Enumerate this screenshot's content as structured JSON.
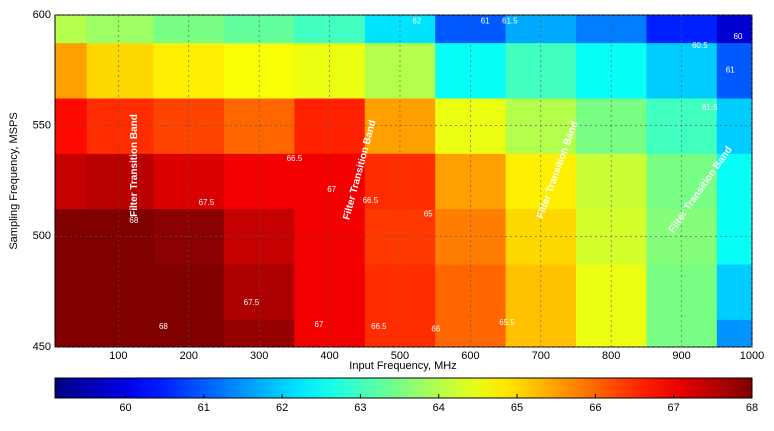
{
  "chart_data": {
    "type": "contour",
    "x": [
      10,
      100,
      200,
      300,
      400,
      500,
      600,
      700,
      800,
      900,
      1000
    ],
    "y": [
      450,
      475,
      500,
      525,
      550,
      575,
      600
    ],
    "z": [
      [
        68.3,
        68.3,
        68.2,
        67.8,
        67,
        66.5,
        66,
        65.2,
        64.5,
        63.5,
        61.5
      ],
      [
        68.2,
        68.2,
        68.1,
        67.6,
        67,
        66.5,
        66,
        65.2,
        64.5,
        63.5,
        62
      ],
      [
        68,
        68,
        67.9,
        67.4,
        67,
        66.4,
        65.8,
        65,
        64.3,
        63.6,
        62.5
      ],
      [
        67.4,
        67.5,
        67.2,
        67,
        67,
        66.5,
        65.5,
        64.8,
        64.2,
        63.5,
        62.5
      ],
      [
        66.8,
        66.5,
        66.3,
        66,
        66.6,
        65.5,
        64.5,
        64,
        63.5,
        63,
        62
      ],
      [
        65.5,
        65,
        64.8,
        64.6,
        64.5,
        64,
        62.5,
        63,
        62.5,
        62,
        61
      ],
      [
        64,
        63.8,
        63.5,
        63.3,
        63,
        62.2,
        61,
        61.7,
        61.3,
        60.5,
        59.8
      ]
    ],
    "xlabel": "Input Frequency, MHz",
    "ylabel": "Sampling Frequency, MSPS",
    "xlim": [
      10,
      1000
    ],
    "ylim": [
      450,
      600
    ],
    "xticks": [
      100,
      200,
      300,
      400,
      500,
      600,
      700,
      800,
      900,
      1000
    ],
    "yticks": [
      450,
      500,
      550,
      600
    ],
    "clim": [
      59.1,
      68
    ],
    "cticks": [
      60,
      61,
      62,
      63,
      64,
      65,
      66,
      67,
      68
    ],
    "colormap": "jet",
    "grid": true,
    "contour_labels": [
      {
        "x": 164,
        "y": 459,
        "value": 68
      },
      {
        "x": 289,
        "y": 470,
        "value": 67.5
      },
      {
        "x": 385,
        "y": 460,
        "value": 67
      },
      {
        "x": 470,
        "y": 459,
        "value": 66.5
      },
      {
        "x": 551,
        "y": 458,
        "value": 66
      },
      {
        "x": 652,
        "y": 461,
        "value": 65.5
      },
      {
        "x": 540,
        "y": 510,
        "value": 65
      },
      {
        "x": 458,
        "y": 516,
        "value": 66.5
      },
      {
        "x": 403,
        "y": 521,
        "value": 67
      },
      {
        "x": 225,
        "y": 515,
        "value": 67.5
      },
      {
        "x": 122,
        "y": 507,
        "value": 68
      },
      {
        "x": 350,
        "y": 535,
        "value": 66.5
      },
      {
        "x": 980,
        "y": 590,
        "value": 60
      },
      {
        "x": 926,
        "y": 586,
        "value": 60.5
      },
      {
        "x": 969,
        "y": 575,
        "value": 61
      },
      {
        "x": 940,
        "y": 558,
        "value": 61.5
      },
      {
        "x": 621,
        "y": 597,
        "value": 61
      },
      {
        "x": 656,
        "y": 597,
        "value": 61.5
      },
      {
        "x": 524,
        "y": 597,
        "value": 62
      }
    ],
    "annotations": [
      {
        "text": "Filter Transition Band",
        "x": 123,
        "y": 532
      },
      {
        "text": "Filter Transition Band",
        "x": 443,
        "y": 530
      },
      {
        "text": "Filter Transition Band",
        "x": 724,
        "y": 530
      },
      {
        "text": "Filter Transition Band",
        "x": 927,
        "y": 521
      }
    ]
  }
}
